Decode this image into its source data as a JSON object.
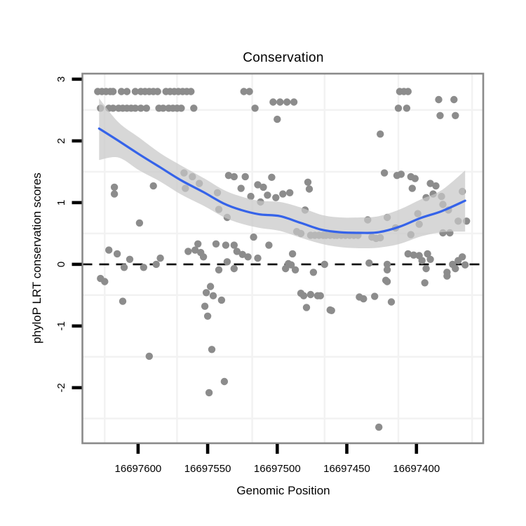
{
  "chart_data": {
    "type": "scatter",
    "title": "Conservation",
    "xlabel": "Genomic Position",
    "ylabel": "phyloP LRT conservation scores",
    "x_axis": {
      "reversed": true,
      "ticks": [
        16697600,
        16697550,
        16697500,
        16697450,
        16697400
      ],
      "range_left": 16697640,
      "range_right": 16697352,
      "gridlines": [
        16697624,
        16697572,
        16697518,
        16697466,
        16697413,
        16697360
      ]
    },
    "y_axis": {
      "ticks": [
        3,
        2,
        1,
        0,
        -1,
        -2
      ],
      "range_top": 3.09,
      "range_bottom": -2.9,
      "gridlines": [
        2.5,
        1.5,
        0.5,
        -0.5,
        -1.5,
        -2.5
      ]
    },
    "reference_line": {
      "y": 0,
      "style": "dashed"
    },
    "colors": {
      "point": "#8C8C8C",
      "smooth_line": "#3563E9",
      "band_fill": "rgba(200,200,200,0.72)",
      "zero_line": "#000000",
      "panel_border": "#8A8A8A",
      "gridline": "#F2F2F2",
      "tick": "#000000",
      "text": "#000000"
    },
    "points": [
      [
        16697629,
        2.8
      ],
      [
        16697626,
        2.8
      ],
      [
        16697623,
        2.8
      ],
      [
        16697620,
        2.8
      ],
      [
        16697618,
        2.8
      ],
      [
        16697612,
        2.8
      ],
      [
        16697608,
        2.8
      ],
      [
        16697602,
        2.8
      ],
      [
        16697598,
        2.8
      ],
      [
        16697595,
        2.8
      ],
      [
        16697592,
        2.8
      ],
      [
        16697589,
        2.8
      ],
      [
        16697586,
        2.8
      ],
      [
        16697580,
        2.8
      ],
      [
        16697577,
        2.8
      ],
      [
        16697574,
        2.8
      ],
      [
        16697571,
        2.8
      ],
      [
        16697568,
        2.8
      ],
      [
        16697565,
        2.8
      ],
      [
        16697562,
        2.8
      ],
      [
        16697524,
        2.8
      ],
      [
        16697520,
        2.8
      ],
      [
        16697412,
        2.8
      ],
      [
        16697409,
        2.8
      ],
      [
        16697406,
        2.8
      ],
      [
        16697627,
        2.53
      ],
      [
        16697621,
        2.53
      ],
      [
        16697618,
        2.53
      ],
      [
        16697614,
        2.53
      ],
      [
        16697611,
        2.53
      ],
      [
        16697608,
        2.53
      ],
      [
        16697605,
        2.53
      ],
      [
        16697602,
        2.53
      ],
      [
        16697598,
        2.53
      ],
      [
        16697594,
        2.53
      ],
      [
        16697585,
        2.53
      ],
      [
        16697582,
        2.53
      ],
      [
        16697578,
        2.53
      ],
      [
        16697575,
        2.53
      ],
      [
        16697572,
        2.53
      ],
      [
        16697569,
        2.53
      ],
      [
        16697560,
        2.53
      ],
      [
        16697516,
        2.53
      ],
      [
        16697413,
        2.53
      ],
      [
        16697407,
        2.53
      ],
      [
        16697503,
        2.63
      ],
      [
        16697498,
        2.63
      ],
      [
        16697493,
        2.63
      ],
      [
        16697488,
        2.63
      ],
      [
        16697500,
        2.35
      ],
      [
        16697384,
        2.67
      ],
      [
        16697373,
        2.67
      ],
      [
        16697383,
        2.41
      ],
      [
        16697372,
        2.41
      ],
      [
        16697426,
        2.11
      ],
      [
        16697567,
        1.48
      ],
      [
        16697561,
        1.42
      ],
      [
        16697556,
        1.31
      ],
      [
        16697535,
        1.44
      ],
      [
        16697531,
        1.42
      ],
      [
        16697523,
        1.42
      ],
      [
        16697504,
        1.41
      ],
      [
        16697423,
        1.48
      ],
      [
        16697414,
        1.44
      ],
      [
        16697411,
        1.46
      ],
      [
        16697617,
        1.25
      ],
      [
        16697617,
        1.14
      ],
      [
        16697589,
        1.27
      ],
      [
        16697566,
        1.23
      ],
      [
        16697526,
        1.23
      ],
      [
        16697514,
        1.29
      ],
      [
        16697510,
        1.25
      ],
      [
        16697543,
        1.16
      ],
      [
        16697519,
        1.1
      ],
      [
        16697507,
        1.12
      ],
      [
        16697501,
        1.08
      ],
      [
        16697512,
        1.01
      ],
      [
        16697542,
        0.89
      ],
      [
        16697536,
        0.76
      ],
      [
        16697599,
        0.67
      ],
      [
        16697478,
        1.33
      ],
      [
        16697477,
        1.22
      ],
      [
        16697491,
        1.16
      ],
      [
        16697496,
        1.14
      ],
      [
        16697404,
        1.42
      ],
      [
        16697401,
        1.39
      ],
      [
        16697403,
        1.23
      ],
      [
        16697390,
        1.31
      ],
      [
        16697386,
        1.27
      ],
      [
        16697393,
        1.08
      ],
      [
        16697388,
        1.14
      ],
      [
        16697382,
        1.1
      ],
      [
        16697381,
        0.97
      ],
      [
        16697377,
        0.88
      ],
      [
        16697367,
        1.18
      ],
      [
        16697399,
        0.82
      ],
      [
        16697398,
        0.65
      ],
      [
        16697435,
        0.72
      ],
      [
        16697421,
        0.76
      ],
      [
        16697415,
        0.59
      ],
      [
        16697404,
        0.48
      ],
      [
        16697381,
        0.51
      ],
      [
        16697376,
        0.51
      ],
      [
        16697370,
        0.7
      ],
      [
        16697364,
        0.7
      ],
      [
        16697486,
        0.53
      ],
      [
        16697483,
        0.5
      ],
      [
        16697480,
        0.88
      ],
      [
        16697476,
        0.47
      ],
      [
        16697473,
        0.47
      ],
      [
        16697470,
        0.47
      ],
      [
        16697467,
        0.47
      ],
      [
        16697465,
        0.47
      ],
      [
        16697462,
        0.47
      ],
      [
        16697459,
        0.47
      ],
      [
        16697457,
        0.47
      ],
      [
        16697454,
        0.47
      ],
      [
        16697451,
        0.47
      ],
      [
        16697448,
        0.47
      ],
      [
        16697445,
        0.47
      ],
      [
        16697442,
        0.47
      ],
      [
        16697432,
        0.44
      ],
      [
        16697429,
        0.42
      ],
      [
        16697426,
        0.43
      ],
      [
        16697621,
        0.23
      ],
      [
        16697615,
        0.17
      ],
      [
        16697606,
        0.08
      ],
      [
        16697610,
        -0.05
      ],
      [
        16697596,
        -0.05
      ],
      [
        16697587,
        0.0
      ],
      [
        16697584,
        0.1
      ],
      [
        16697627,
        -0.23
      ],
      [
        16697624,
        -0.28
      ],
      [
        16697611,
        -0.6
      ],
      [
        16697592,
        -1.49
      ],
      [
        16697549,
        -2.08
      ],
      [
        16697538,
        -1.9
      ],
      [
        16697547,
        -1.38
      ],
      [
        16697552,
        -0.68
      ],
      [
        16697550,
        -0.84
      ],
      [
        16697551,
        -0.46
      ],
      [
        16697548,
        -0.36
      ],
      [
        16697546,
        -0.51
      ],
      [
        16697540,
        -0.58
      ],
      [
        16697564,
        0.21
      ],
      [
        16697559,
        0.23
      ],
      [
        16697555,
        0.19
      ],
      [
        16697553,
        0.12
      ],
      [
        16697542,
        -0.09
      ],
      [
        16697536,
        0.04
      ],
      [
        16697531,
        -0.07
      ],
      [
        16697537,
        0.31
      ],
      [
        16697531,
        0.31
      ],
      [
        16697544,
        0.33
      ],
      [
        16697557,
        0.33
      ],
      [
        16697529,
        0.21
      ],
      [
        16697525,
        0.16
      ],
      [
        16697521,
        0.12
      ],
      [
        16697514,
        0.1
      ],
      [
        16697517,
        0.44
      ],
      [
        16697506,
        0.31
      ],
      [
        16697489,
        0.17
      ],
      [
        16697492,
        0.01
      ],
      [
        16697490,
        -0.01
      ],
      [
        16697494,
        -0.07
      ],
      [
        16697487,
        -0.09
      ],
      [
        16697474,
        -0.13
      ],
      [
        16697466,
        0.0
      ],
      [
        16697434,
        0.02
      ],
      [
        16697421,
        0.0
      ],
      [
        16697421,
        -0.09
      ],
      [
        16697422,
        -0.26
      ],
      [
        16697406,
        0.17
      ],
      [
        16697402,
        0.15
      ],
      [
        16697398,
        0.14
      ],
      [
        16697392,
        0.17
      ],
      [
        16697396,
        0.06
      ],
      [
        16697390,
        0.08
      ],
      [
        16697393,
        -0.07
      ],
      [
        16697378,
        -0.13
      ],
      [
        16697374,
        0.0
      ],
      [
        16697372,
        -0.07
      ],
      [
        16697370,
        0.06
      ],
      [
        16697367,
        0.12
      ],
      [
        16697365,
        -0.01
      ],
      [
        16697394,
        -0.3
      ],
      [
        16697378,
        -0.19
      ],
      [
        16697483,
        -0.47
      ],
      [
        16697481,
        -0.51
      ],
      [
        16697476,
        -0.49
      ],
      [
        16697471,
        -0.51
      ],
      [
        16697469,
        -0.51
      ],
      [
        16697479,
        -0.7
      ],
      [
        16697462,
        -0.74
      ],
      [
        16697461,
        -0.75
      ],
      [
        16697441,
        -0.53
      ],
      [
        16697438,
        -0.56
      ],
      [
        16697430,
        -0.52
      ],
      [
        16697418,
        -0.61
      ],
      [
        16697421,
        -0.28
      ],
      [
        16697427,
        -2.64
      ]
    ],
    "smooth": [
      [
        16697628,
        2.2
      ],
      [
        16697614,
        2.0
      ],
      [
        16697599,
        1.78
      ],
      [
        16697584,
        1.57
      ],
      [
        16697569,
        1.36
      ],
      [
        16697553,
        1.17
      ],
      [
        16697538,
        0.98
      ],
      [
        16697526,
        0.88
      ],
      [
        16697513,
        0.81
      ],
      [
        16697498,
        0.78
      ],
      [
        16697483,
        0.67
      ],
      [
        16697468,
        0.56
      ],
      [
        16697455,
        0.52
      ],
      [
        16697440,
        0.51
      ],
      [
        16697427,
        0.52
      ],
      [
        16697412,
        0.61
      ],
      [
        16697397,
        0.75
      ],
      [
        16697382,
        0.86
      ],
      [
        16697365,
        1.03
      ]
    ],
    "band": [
      [
        16697628,
        1.69,
        2.69
      ],
      [
        16697614,
        1.73,
        2.3
      ],
      [
        16697599,
        1.52,
        2.05
      ],
      [
        16697584,
        1.34,
        1.8
      ],
      [
        16697569,
        1.13,
        1.6
      ],
      [
        16697553,
        0.95,
        1.4
      ],
      [
        16697538,
        0.76,
        1.2
      ],
      [
        16697526,
        0.66,
        1.1
      ],
      [
        16697513,
        0.59,
        1.03
      ],
      [
        16697498,
        0.54,
        1.01
      ],
      [
        16697483,
        0.43,
        0.92
      ],
      [
        16697468,
        0.33,
        0.8
      ],
      [
        16697455,
        0.28,
        0.76
      ],
      [
        16697440,
        0.26,
        0.76
      ],
      [
        16697427,
        0.27,
        0.78
      ],
      [
        16697412,
        0.33,
        0.89
      ],
      [
        16697397,
        0.45,
        1.05
      ],
      [
        16697382,
        0.52,
        1.2
      ],
      [
        16697365,
        0.53,
        1.52
      ]
    ]
  }
}
